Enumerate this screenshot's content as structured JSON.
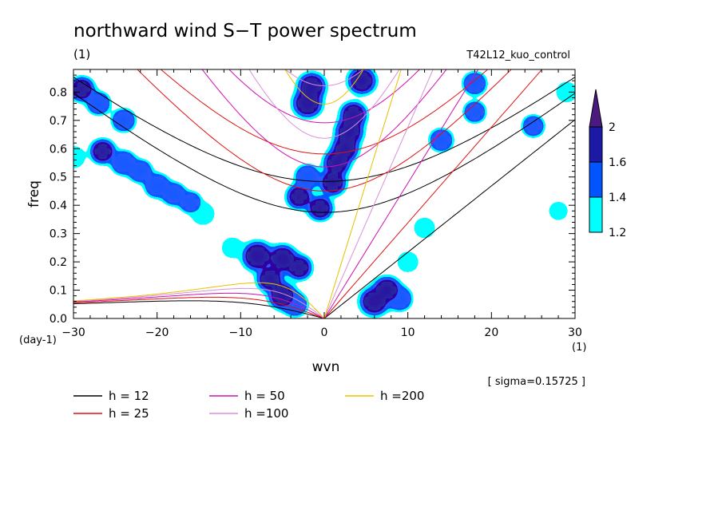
{
  "chart_data": {
    "type": "heatmap",
    "title": "northward wind S−T power spectrum",
    "subtitle_left": "(1)",
    "subtitle_right": "T42L12_kuo_control",
    "xlabel": "wvn",
    "ylabel": "freq",
    "x_unit": "(1)",
    "y_unit": "(day-1)",
    "annotation": "[ sigma=0.15725 ]",
    "xlim": [
      -30,
      30
    ],
    "ylim": [
      0,
      0.88
    ],
    "x_ticks": [
      -30,
      -20,
      -10,
      0,
      10,
      20,
      30
    ],
    "y_ticks": [
      0.0,
      0.1,
      0.2,
      0.3,
      0.4,
      0.5,
      0.6,
      0.7,
      0.8
    ],
    "colorbar": {
      "levels": [
        1.2,
        1.4,
        1.6,
        2
      ],
      "labels": [
        "1.2",
        "1.4",
        "1.6",
        "2"
      ],
      "colors": [
        "#00ffff",
        "#0055ff",
        "#1a1aa6",
        "#4b1a80"
      ]
    },
    "contour_colors": {
      "low": "#00ffff",
      "mid": "#1e5aff",
      "high": "#2a1aa0",
      "outline": "#3d1c7a"
    },
    "dispersion_curves": [
      {
        "label": "h = 12",
        "h": 12,
        "color": "#000000"
      },
      {
        "label": "h = 25",
        "h": 25,
        "color": "#e01010"
      },
      {
        "label": "h = 50",
        "h": 50,
        "color": "#d010b0"
      },
      {
        "label": "h =100",
        "h": 100,
        "color": "#d890d8"
      },
      {
        "label": "h =200",
        "h": 200,
        "color": "#e8c000"
      }
    ],
    "spectral_peaks": [
      {
        "k": -1.5,
        "f": 0.82,
        "v": 2.0
      },
      {
        "k": -2.0,
        "f": 0.76,
        "v": 2.1
      },
      {
        "k": 4.5,
        "f": 0.84,
        "v": 2.0
      },
      {
        "k": 3.5,
        "f": 0.72,
        "v": 1.9
      },
      {
        "k": 3.0,
        "f": 0.66,
        "v": 2.0
      },
      {
        "k": 2.5,
        "f": 0.6,
        "v": 1.9
      },
      {
        "k": 1.5,
        "f": 0.55,
        "v": 1.9
      },
      {
        "k": 1.0,
        "f": 0.48,
        "v": 1.9
      },
      {
        "k": -2.0,
        "f": 0.5,
        "v": 1.7
      },
      {
        "k": -3.0,
        "f": 0.43,
        "v": 1.8
      },
      {
        "k": -0.5,
        "f": 0.39,
        "v": 1.8
      },
      {
        "k": -8.0,
        "f": 0.22,
        "v": 2.2
      },
      {
        "k": -5.0,
        "f": 0.21,
        "v": 2.1
      },
      {
        "k": -3.0,
        "f": 0.18,
        "v": 1.8
      },
      {
        "k": -6.5,
        "f": 0.14,
        "v": 1.9
      },
      {
        "k": -5.0,
        "f": 0.08,
        "v": 2.0
      },
      {
        "k": -3.5,
        "f": 0.05,
        "v": 1.7
      },
      {
        "k": 6.0,
        "f": 0.06,
        "v": 2.1
      },
      {
        "k": 7.5,
        "f": 0.1,
        "v": 2.0
      },
      {
        "k": 9.0,
        "f": 0.07,
        "v": 1.7
      },
      {
        "k": -29.0,
        "f": 0.81,
        "v": 1.8
      },
      {
        "k": -27.0,
        "f": 0.76,
        "v": 1.6
      },
      {
        "k": -24.0,
        "f": 0.7,
        "v": 1.6
      },
      {
        "k": -26.5,
        "f": 0.59,
        "v": 1.8
      },
      {
        "k": -24.0,
        "f": 0.55,
        "v": 1.7
      },
      {
        "k": -22.0,
        "f": 0.52,
        "v": 1.6
      },
      {
        "k": -20.0,
        "f": 0.47,
        "v": 1.7
      },
      {
        "k": -18.0,
        "f": 0.44,
        "v": 1.6
      },
      {
        "k": -16.0,
        "f": 0.41,
        "v": 1.5
      },
      {
        "k": -14.5,
        "f": 0.37,
        "v": 1.4
      },
      {
        "k": -30.0,
        "f": 0.57,
        "v": 1.4
      },
      {
        "k": -11.0,
        "f": 0.25,
        "v": 1.3
      },
      {
        "k": 14.0,
        "f": 0.63,
        "v": 1.6
      },
      {
        "k": 18.0,
        "f": 0.73,
        "v": 1.5
      },
      {
        "k": 25.0,
        "f": 0.68,
        "v": 1.5
      },
      {
        "k": 29.0,
        "f": 0.8,
        "v": 1.3
      },
      {
        "k": 10.0,
        "f": 0.2,
        "v": 1.3
      },
      {
        "k": 12.0,
        "f": 0.32,
        "v": 1.3
      },
      {
        "k": 28.0,
        "f": 0.38,
        "v": 1.2
      },
      {
        "k": 18.0,
        "f": 0.83,
        "v": 1.6
      }
    ]
  }
}
